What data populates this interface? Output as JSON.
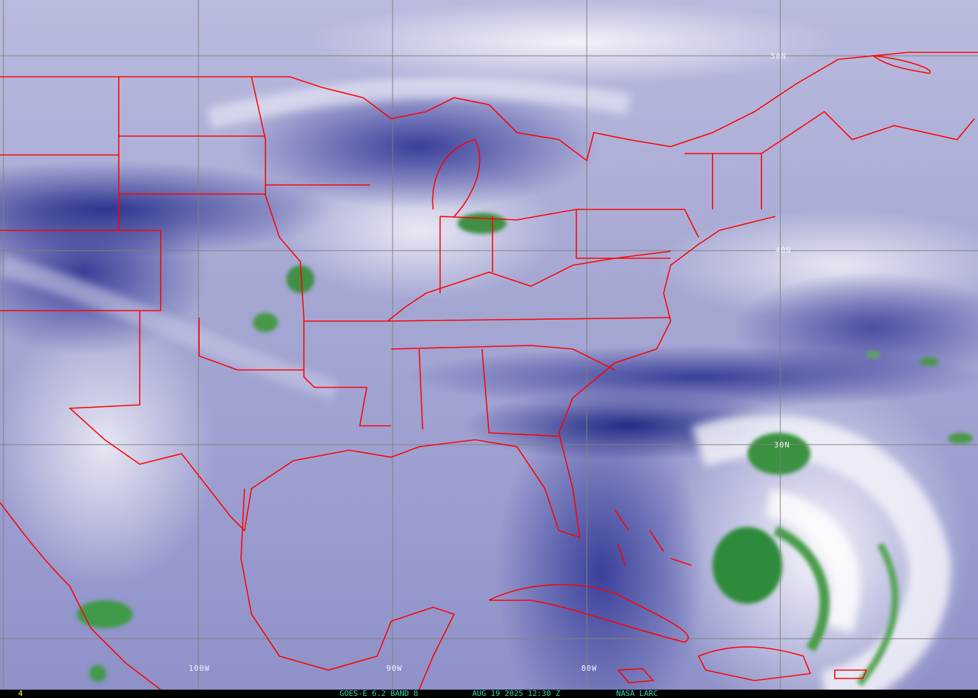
{
  "map": {
    "product": "GOES-E 6.2 BAND 8",
    "datetime": "AUG 19 2025 12:30 Z",
    "credit": "NASA LARC",
    "frame_number": "4",
    "longitude_labels": [
      "100W",
      "90W",
      "80W"
    ],
    "latitude_labels": [
      "50N",
      "40N",
      "30N"
    ],
    "colors": {
      "moist": "#3a8f3e",
      "dry": "#2a3190",
      "mid": "#a8aad4",
      "boundaries": "#ff0000",
      "footer_text": "#35d6b5",
      "frame_text": "#ffff33"
    }
  }
}
